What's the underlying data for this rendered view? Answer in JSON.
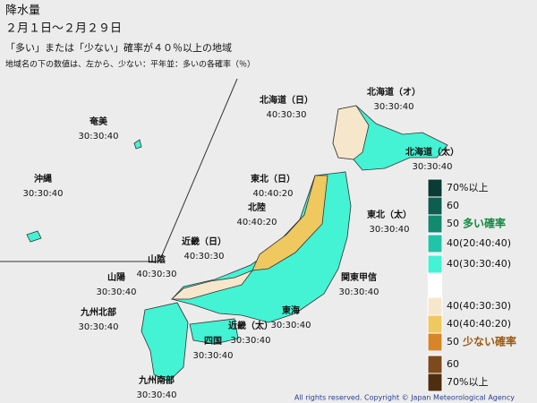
{
  "header": {
    "title": "降水量",
    "period": "２月１日～２月２９日",
    "subtitle": "「多い」または「少ない」確率が４０％以上の地域",
    "note": "地域名の下の数値は、左から、少ない：平年並：多いの各確率（％）"
  },
  "regions": [
    {
      "name": "北海道（日）",
      "probs": "40:30:30"
    },
    {
      "name": "北海道（オ）",
      "probs": "30:30:40"
    },
    {
      "name": "北海道（太）",
      "probs": "30:30:40"
    },
    {
      "name": "東北（日）",
      "probs": "40:40:20"
    },
    {
      "name": "東北（太）",
      "probs": "30:30:40"
    },
    {
      "name": "北陸",
      "probs": "40:40:20"
    },
    {
      "name": "関東甲信",
      "probs": "30:30:40"
    },
    {
      "name": "近畿（日）",
      "probs": "40:30:30"
    },
    {
      "name": "近畿（太）",
      "probs": "30:30:40"
    },
    {
      "name": "東海",
      "probs": "30:30:40"
    },
    {
      "name": "山陰",
      "probs": "40:30:30"
    },
    {
      "name": "山陽",
      "probs": "30:30:40"
    },
    {
      "name": "四国",
      "probs": "30:30:40"
    },
    {
      "name": "九州北部",
      "probs": "30:30:40"
    },
    {
      "name": "九州南部",
      "probs": "30:30:40"
    },
    {
      "name": "奄美",
      "probs": "30:30:40"
    },
    {
      "name": "沖縄",
      "probs": "30:30:40"
    }
  ],
  "legend": {
    "items": [
      {
        "label": "70%以上",
        "color": "#0b3b33"
      },
      {
        "label": "60",
        "color": "#0e5e50"
      },
      {
        "label": "50",
        "color": "#128a70"
      },
      {
        "label": "40(20:40:40)",
        "color": "#22c4a8"
      },
      {
        "label": "40(30:30:40)",
        "color": "#44f2d4"
      },
      {
        "label": "40(40:30:30)",
        "color": "#f6e7cc"
      },
      {
        "label": "40(40:40:20)",
        "color": "#f0c860"
      },
      {
        "label": "50",
        "color": "#d88428"
      },
      {
        "label": "60",
        "color": "#7c4a1c"
      },
      {
        "label": "70%以上",
        "color": "#4e2e0e"
      }
    ],
    "many_label": "多い確率",
    "few_label": "少ない確率"
  },
  "footer": {
    "copyright": "All rights reserved. Copyright © Japan Meteorological Agency"
  }
}
